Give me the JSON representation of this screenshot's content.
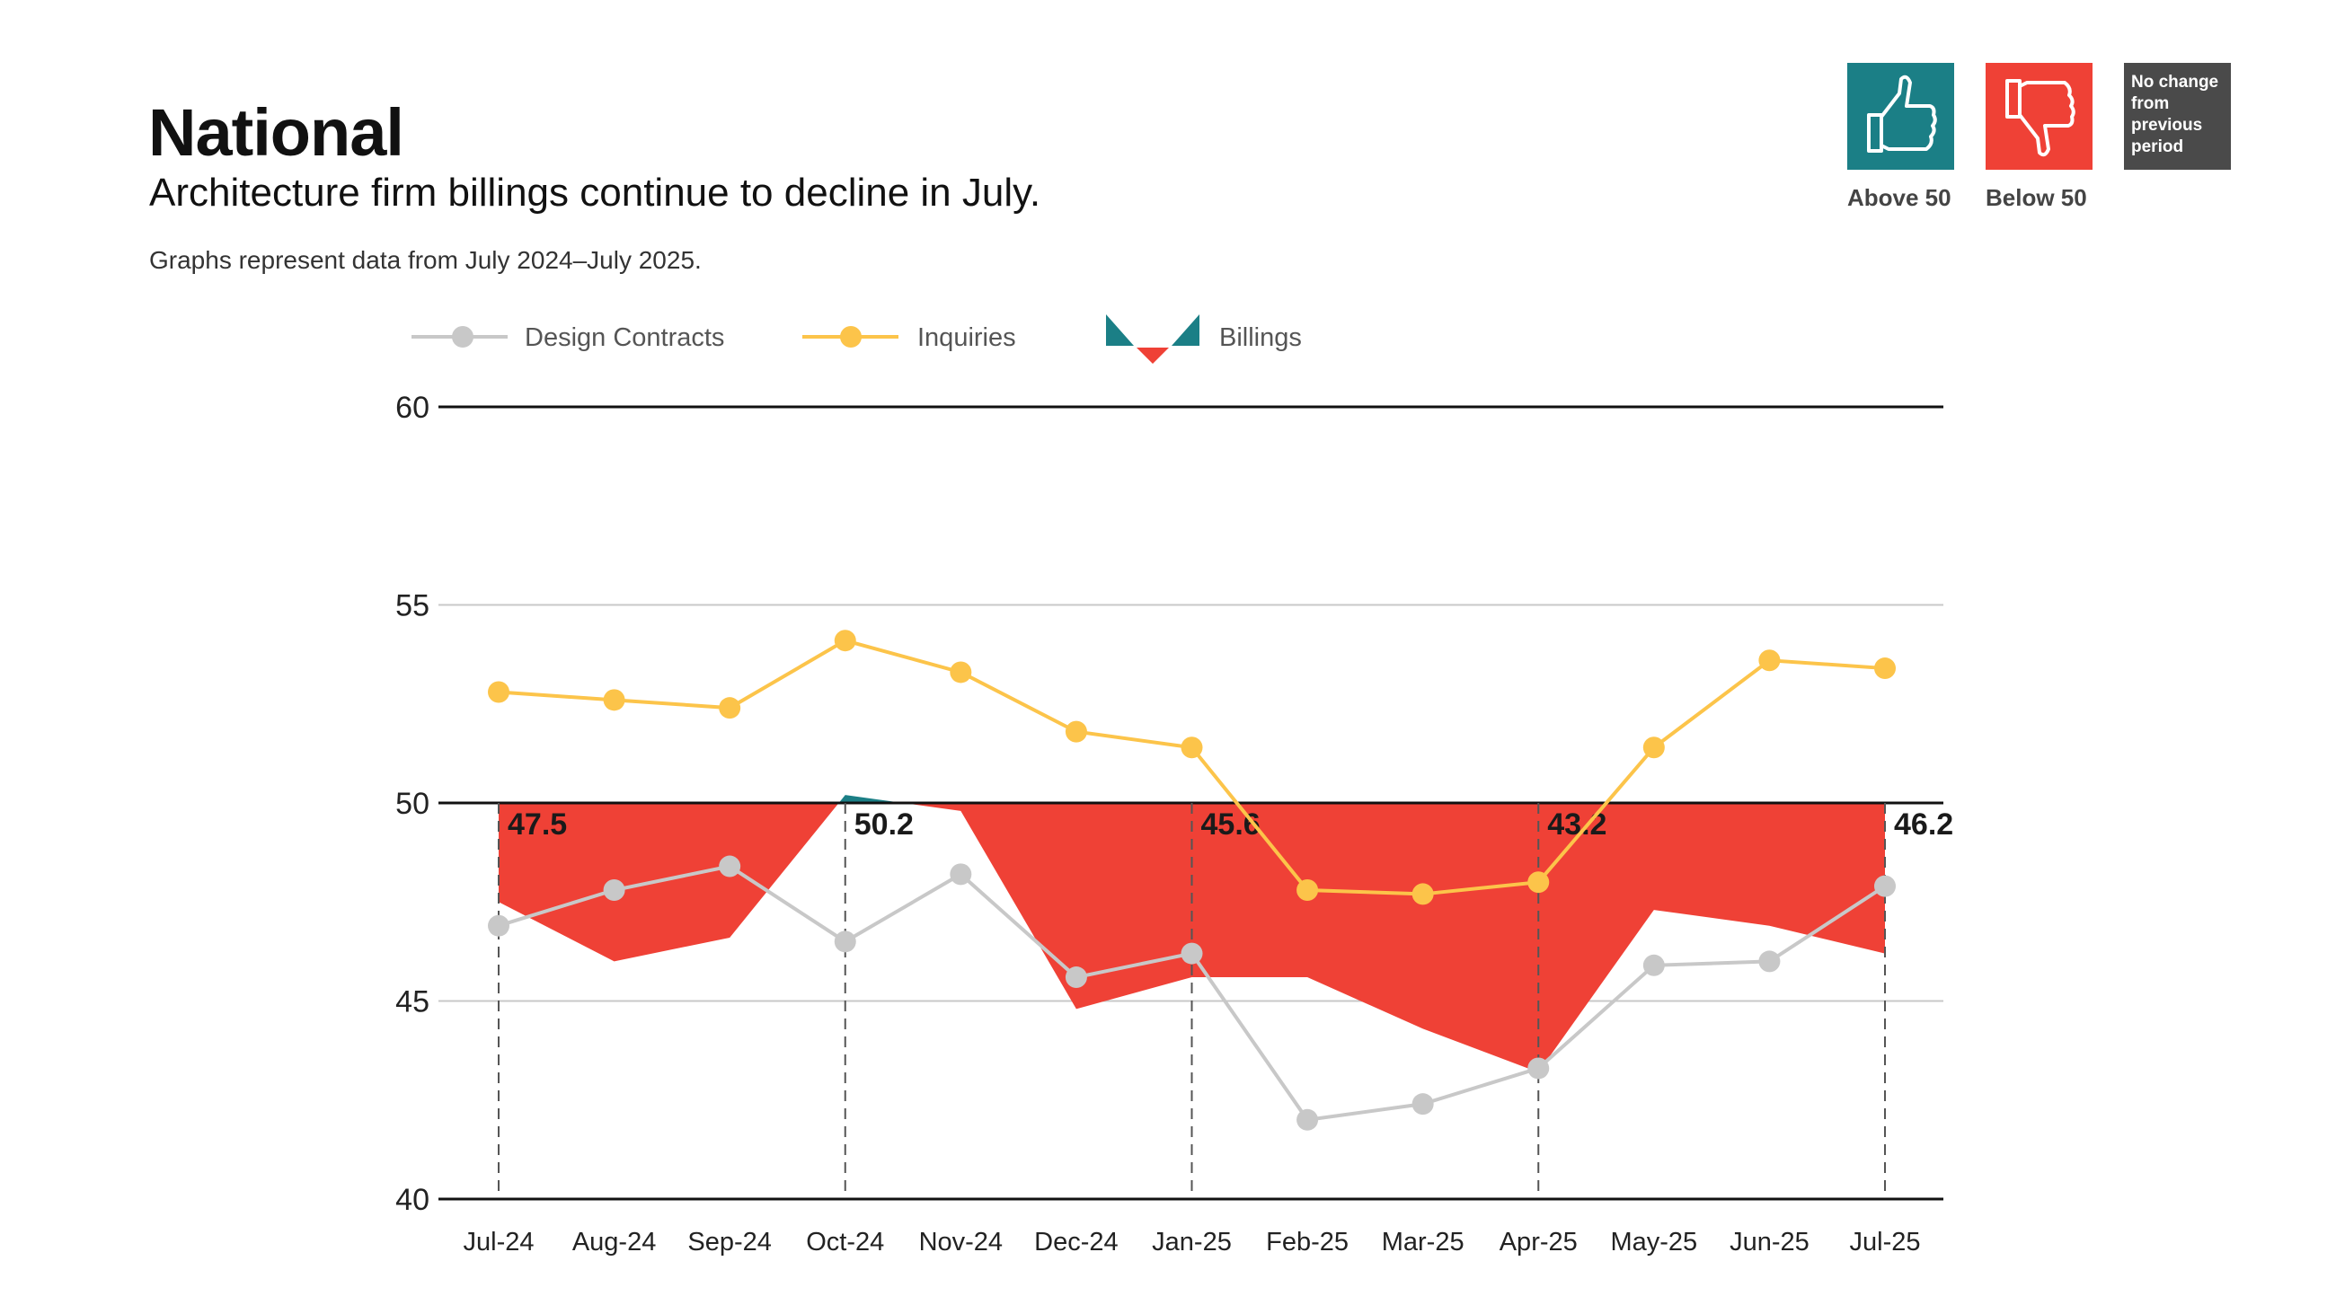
{
  "header": {
    "title": "National",
    "subtitle": "Architecture firm billings continue to decline in July.",
    "note": "Graphs represent data from July 2024–July 2025."
  },
  "key": {
    "above": {
      "label": "Above 50",
      "color": "#1b7f86",
      "icon": "thumbs-up-icon"
    },
    "below": {
      "label": "Below 50",
      "color": "#ef4136",
      "icon": "thumbs-down-icon"
    },
    "no_change": {
      "label": "No change from previous period",
      "color": "#4a4a4a"
    }
  },
  "chart_data": {
    "type": "line",
    "title": "",
    "xlabel": "",
    "ylabel": "",
    "ylim": [
      40,
      60
    ],
    "yticks": [
      40,
      45,
      50,
      55,
      60
    ],
    "grid": true,
    "legend_position": "top-left",
    "categories": [
      "Jul-24",
      "Aug-24",
      "Sep-24",
      "Oct-24",
      "Nov-24",
      "Dec-24",
      "Jan-25",
      "Feb-25",
      "Mar-25",
      "Apr-25",
      "May-25",
      "Jun-25",
      "Jul-25"
    ],
    "series": [
      {
        "name": "Design Contracts",
        "kind": "line",
        "color": "#c8c8c8",
        "values": [
          46.9,
          47.8,
          48.4,
          46.5,
          48.2,
          45.6,
          46.2,
          42.0,
          42.4,
          43.3,
          45.9,
          46.0,
          47.9
        ]
      },
      {
        "name": "Inquiries",
        "kind": "line",
        "color": "#fcc44a",
        "values": [
          52.8,
          52.6,
          52.4,
          54.1,
          53.3,
          51.8,
          51.4,
          47.8,
          47.7,
          48.0,
          51.4,
          53.6,
          53.4
        ]
      },
      {
        "name": "Billings",
        "kind": "area-around-50",
        "color_above": "#1b7f86",
        "color_below": "#ef4136",
        "values": [
          47.5,
          46.0,
          46.6,
          50.2,
          49.8,
          44.8,
          45.6,
          45.6,
          44.3,
          43.2,
          47.3,
          46.9,
          46.2
        ]
      }
    ],
    "annotations": [
      {
        "category": "Jul-24",
        "label": "47.5"
      },
      {
        "category": "Oct-24",
        "label": "50.2"
      },
      {
        "category": "Jan-25",
        "label": "45.6"
      },
      {
        "category": "Apr-25",
        "label": "43.2"
      },
      {
        "category": "Jul-25",
        "label": "46.2"
      }
    ]
  }
}
